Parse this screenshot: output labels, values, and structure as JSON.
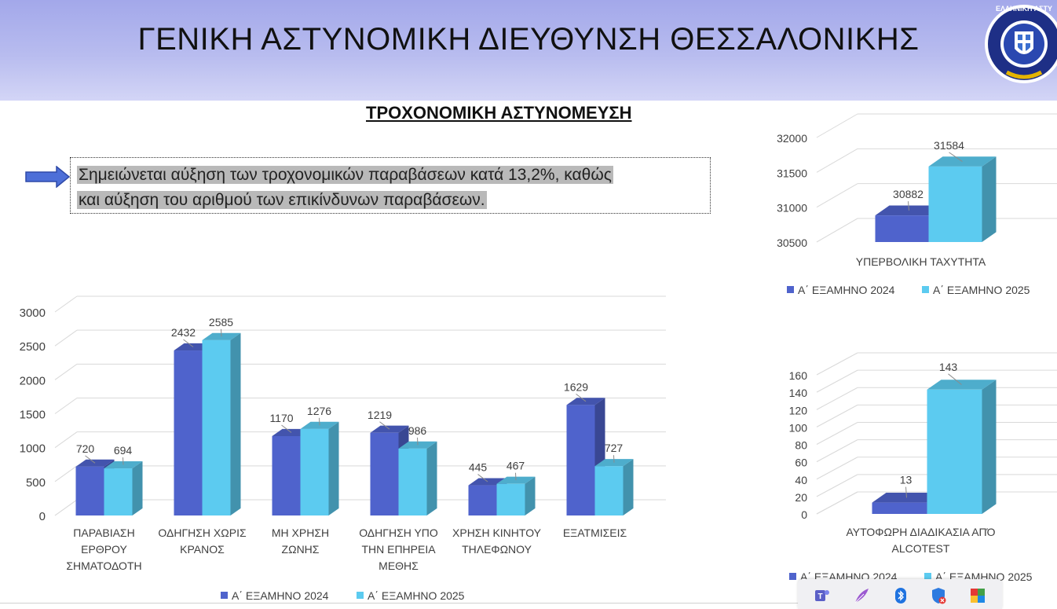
{
  "header": {
    "title": "ΓΕΝΙΚΗ ΑΣΤΥΝΟΜΙΚΗ ΔΙΕΥΘΥΝΣΗ ΘΕΣΣΑΛΟΝΙΚΗΣ",
    "logo_text": "ΕΛΛΗΝΙΚΗ ΑΣΤΥ"
  },
  "subtitle": "ΤΡΟΧΟΝΟΜΙΚΗ ΑΣΤΥΝΟΜΕΥΣΗ",
  "note": {
    "line1": "Σημειώνεται αύξηση των τροχονομικών παραβάσεων κατά 13,2%, καθώς",
    "line2": "και αύξηση του αριθμού των επικίνδυνων παραβάσεων."
  },
  "colors": {
    "series_2024": "#4f63cc",
    "series_2025": "#5ccbf0",
    "header_bg": "#b3b8ee"
  },
  "chart_data": [
    {
      "type": "bar",
      "categories": [
        [
          "ΠΑΡΑΒΙΑΣΗ",
          "ΕΡΘΡΟΥ",
          "ΣΗΜΑΤΟΔΟΤΗ"
        ],
        [
          "ΟΔΗΓΗΣΗ ΧΩΡΙΣ",
          "ΚΡΑΝΟΣ"
        ],
        [
          "ΜΗ ΧΡΗΣΗ",
          "ΖΩΝΗΣ"
        ],
        [
          "ΟΔΗΓΗΣΗ ΥΠΟ",
          "ΤΗΝ ΕΠΗΡΕΙΑ",
          "ΜΕΘΗΣ"
        ],
        [
          "ΧΡΗΣΗ ΚΙΝΗΤΟΥ",
          "ΤΗΛΕΦΩΝΟΥ"
        ],
        [
          "ΕΞΑΤΜΙΣΕΙΣ"
        ]
      ],
      "series": [
        {
          "name": "Α΄ ΕΞΑΜΗΝΟ 2024",
          "values": [
            720,
            2432,
            1170,
            1219,
            445,
            1629
          ]
        },
        {
          "name": "Α΄ ΕΞΑΜΗΝΟ 2025",
          "values": [
            694,
            2585,
            1276,
            986,
            467,
            727
          ]
        }
      ],
      "yticks": [
        0,
        500,
        1000,
        1500,
        2000,
        2500,
        3000
      ],
      "ylim": [
        0,
        3000
      ],
      "legend": "bottom",
      "grid": true
    },
    {
      "type": "bar",
      "categories": [
        [
          "ΥΠΕΡΒΟΛΙΚΗ ΤΑΧΥΤΗΤΑ"
        ]
      ],
      "series": [
        {
          "name": "Α΄ ΕΞΑΜΗΝΟ 2024",
          "values": [
            30882
          ]
        },
        {
          "name": "Α΄ ΕΞΑΜΗΝΟ 2025",
          "values": [
            31584
          ]
        }
      ],
      "yticks": [
        30500,
        31000,
        31500,
        32000
      ],
      "ylim": [
        30500,
        32000
      ],
      "legend": "bottom",
      "grid": true
    },
    {
      "type": "bar",
      "categories": [
        [
          "ΑΥΤΟΦΩΡΗ ΔΙΑΔΙΚΑΣΙΑ ΑΠΌ",
          "ALCOTEST"
        ]
      ],
      "series": [
        {
          "name": "Α΄ ΕΞΑΜΗΝΟ 2024",
          "values": [
            13
          ]
        },
        {
          "name": "Α΄ ΕΞΑΜΗΝΟ 2025",
          "values": [
            143
          ]
        }
      ],
      "yticks": [
        0,
        20,
        40,
        60,
        80,
        100,
        120,
        140,
        160
      ],
      "ylim": [
        0,
        160
      ],
      "legend": "bottom",
      "grid": true
    }
  ],
  "taskbar": {
    "icons": [
      "teams-icon",
      "feather-icon",
      "bluetooth-icon",
      "security-shield-icon",
      "colorful-app-icon"
    ]
  }
}
